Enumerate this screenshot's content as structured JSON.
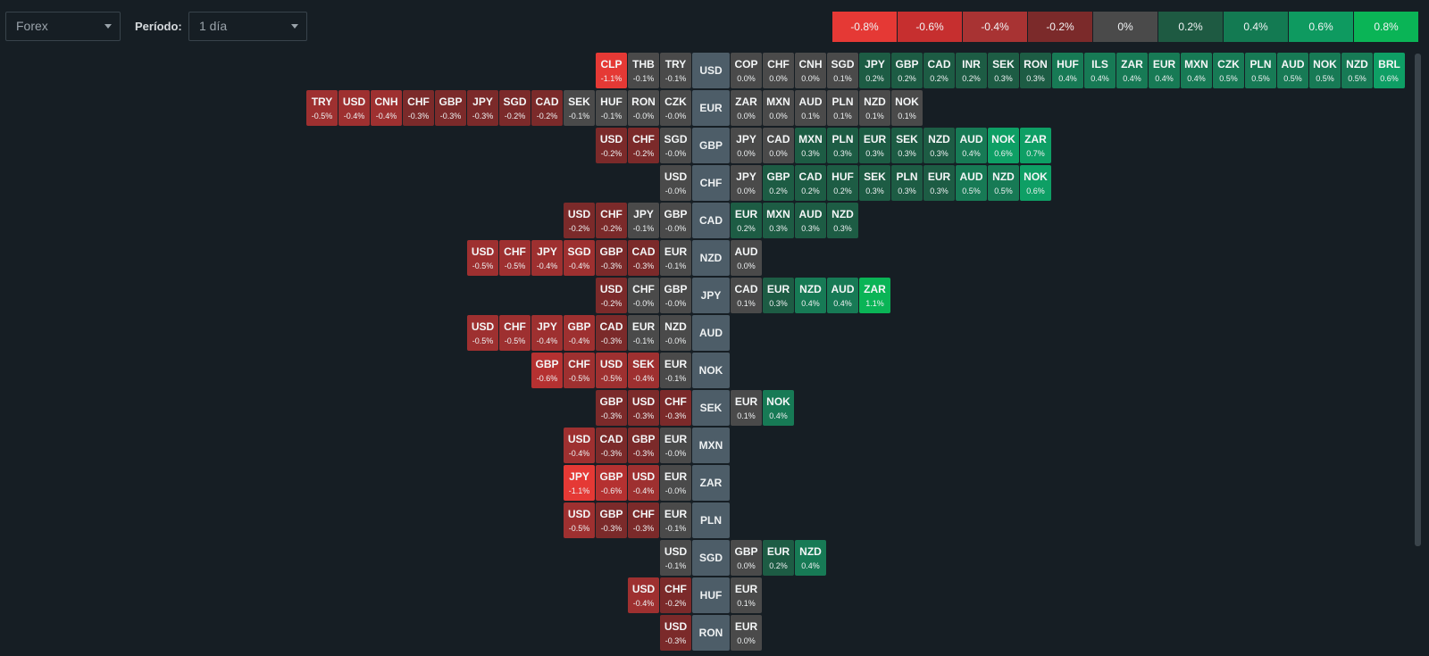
{
  "toolbar": {
    "market": "Forex",
    "period_label": "Período:",
    "period_value": "1 día"
  },
  "legend": [
    {
      "label": "-0.8%",
      "color": "#e53935"
    },
    {
      "label": "-0.6%",
      "color": "#c62f2f"
    },
    {
      "label": "-0.4%",
      "color": "#a83333"
    },
    {
      "label": "-0.2%",
      "color": "#7b2a2a"
    },
    {
      "label": "0%",
      "color": "#4a4a4a"
    },
    {
      "label": "0.2%",
      "color": "#1e5a42"
    },
    {
      "label": "0.4%",
      "color": "#137a52"
    },
    {
      "label": "0.6%",
      "color": "#0e9a60"
    },
    {
      "label": "0.8%",
      "color": "#0ab456"
    }
  ],
  "rows": [
    {
      "base": "USD",
      "left": [
        [
          "CLP",
          "-1.1%"
        ],
        [
          "THB",
          "-0.1%"
        ],
        [
          "TRY",
          "-0.1%"
        ]
      ],
      "right": [
        [
          "COP",
          "0.0%"
        ],
        [
          "CHF",
          "0.0%"
        ],
        [
          "CNH",
          "0.0%"
        ],
        [
          "SGD",
          "0.1%"
        ],
        [
          "JPY",
          "0.2%"
        ],
        [
          "GBP",
          "0.2%"
        ],
        [
          "CAD",
          "0.2%"
        ],
        [
          "INR",
          "0.2%"
        ],
        [
          "SEK",
          "0.3%"
        ],
        [
          "RON",
          "0.3%"
        ],
        [
          "HUF",
          "0.4%"
        ],
        [
          "ILS",
          "0.4%"
        ],
        [
          "ZAR",
          "0.4%"
        ],
        [
          "EUR",
          "0.4%"
        ],
        [
          "MXN",
          "0.4%"
        ],
        [
          "CZK",
          "0.5%"
        ],
        [
          "PLN",
          "0.5%"
        ],
        [
          "AUD",
          "0.5%"
        ],
        [
          "NOK",
          "0.5%"
        ],
        [
          "NZD",
          "0.5%"
        ],
        [
          "BRL",
          "0.6%"
        ]
      ]
    },
    {
      "base": "EUR",
      "left": [
        [
          "TRY",
          "-0.5%"
        ],
        [
          "USD",
          "-0.4%"
        ],
        [
          "CNH",
          "-0.4%"
        ],
        [
          "CHF",
          "-0.3%"
        ],
        [
          "GBP",
          "-0.3%"
        ],
        [
          "JPY",
          "-0.3%"
        ],
        [
          "SGD",
          "-0.2%"
        ],
        [
          "CAD",
          "-0.2%"
        ],
        [
          "SEK",
          "-0.1%"
        ],
        [
          "HUF",
          "-0.1%"
        ],
        [
          "RON",
          "-0.0%"
        ],
        [
          "CZK",
          "-0.0%"
        ]
      ],
      "right": [
        [
          "ZAR",
          "0.0%"
        ],
        [
          "MXN",
          "0.0%"
        ],
        [
          "AUD",
          "0.1%"
        ],
        [
          "PLN",
          "0.1%"
        ],
        [
          "NZD",
          "0.1%"
        ],
        [
          "NOK",
          "0.1%"
        ]
      ]
    },
    {
      "base": "GBP",
      "left": [
        [
          "USD",
          "-0.2%"
        ],
        [
          "CHF",
          "-0.2%"
        ],
        [
          "SGD",
          "-0.0%"
        ]
      ],
      "right": [
        [
          "JPY",
          "0.0%"
        ],
        [
          "CAD",
          "0.0%"
        ],
        [
          "MXN",
          "0.3%"
        ],
        [
          "PLN",
          "0.3%"
        ],
        [
          "EUR",
          "0.3%"
        ],
        [
          "SEK",
          "0.3%"
        ],
        [
          "NZD",
          "0.3%"
        ],
        [
          "AUD",
          "0.4%"
        ],
        [
          "NOK",
          "0.6%"
        ],
        [
          "ZAR",
          "0.7%"
        ]
      ]
    },
    {
      "base": "CHF",
      "left": [
        [
          "USD",
          "-0.0%"
        ]
      ],
      "right": [
        [
          "JPY",
          "0.0%"
        ],
        [
          "GBP",
          "0.2%"
        ],
        [
          "CAD",
          "0.2%"
        ],
        [
          "HUF",
          "0.2%"
        ],
        [
          "SEK",
          "0.3%"
        ],
        [
          "PLN",
          "0.3%"
        ],
        [
          "EUR",
          "0.3%"
        ],
        [
          "AUD",
          "0.5%"
        ],
        [
          "NZD",
          "0.5%"
        ],
        [
          "NOK",
          "0.6%"
        ]
      ]
    },
    {
      "base": "CAD",
      "left": [
        [
          "USD",
          "-0.2%"
        ],
        [
          "CHF",
          "-0.2%"
        ],
        [
          "JPY",
          "-0.1%"
        ],
        [
          "GBP",
          "-0.0%"
        ]
      ],
      "right": [
        [
          "EUR",
          "0.2%"
        ],
        [
          "MXN",
          "0.3%"
        ],
        [
          "AUD",
          "0.3%"
        ],
        [
          "NZD",
          "0.3%"
        ]
      ]
    },
    {
      "base": "NZD",
      "left": [
        [
          "USD",
          "-0.5%"
        ],
        [
          "CHF",
          "-0.5%"
        ],
        [
          "JPY",
          "-0.4%"
        ],
        [
          "SGD",
          "-0.4%"
        ],
        [
          "GBP",
          "-0.3%"
        ],
        [
          "CAD",
          "-0.3%"
        ],
        [
          "EUR",
          "-0.1%"
        ]
      ],
      "right": [
        [
          "AUD",
          "0.0%"
        ]
      ]
    },
    {
      "base": "JPY",
      "left": [
        [
          "USD",
          "-0.2%"
        ],
        [
          "CHF",
          "-0.0%"
        ],
        [
          "GBP",
          "-0.0%"
        ]
      ],
      "right": [
        [
          "CAD",
          "0.1%"
        ],
        [
          "EUR",
          "0.3%"
        ],
        [
          "NZD",
          "0.4%"
        ],
        [
          "AUD",
          "0.4%"
        ],
        [
          "ZAR",
          "1.1%"
        ]
      ]
    },
    {
      "base": "AUD",
      "left": [
        [
          "USD",
          "-0.5%"
        ],
        [
          "CHF",
          "-0.5%"
        ],
        [
          "JPY",
          "-0.4%"
        ],
        [
          "GBP",
          "-0.4%"
        ],
        [
          "CAD",
          "-0.3%"
        ],
        [
          "EUR",
          "-0.1%"
        ],
        [
          "NZD",
          "-0.0%"
        ]
      ],
      "right": []
    },
    {
      "base": "NOK",
      "left": [
        [
          "GBP",
          "-0.6%"
        ],
        [
          "CHF",
          "-0.5%"
        ],
        [
          "USD",
          "-0.5%"
        ],
        [
          "SEK",
          "-0.4%"
        ],
        [
          "EUR",
          "-0.1%"
        ]
      ],
      "right": []
    },
    {
      "base": "SEK",
      "left": [
        [
          "GBP",
          "-0.3%"
        ],
        [
          "USD",
          "-0.3%"
        ],
        [
          "CHF",
          "-0.3%"
        ]
      ],
      "right": [
        [
          "EUR",
          "0.1%"
        ],
        [
          "NOK",
          "0.4%"
        ]
      ]
    },
    {
      "base": "MXN",
      "left": [
        [
          "USD",
          "-0.4%"
        ],
        [
          "CAD",
          "-0.3%"
        ],
        [
          "GBP",
          "-0.3%"
        ],
        [
          "EUR",
          "-0.0%"
        ]
      ],
      "right": []
    },
    {
      "base": "ZAR",
      "left": [
        [
          "JPY",
          "-1.1%"
        ],
        [
          "GBP",
          "-0.6%"
        ],
        [
          "USD",
          "-0.4%"
        ],
        [
          "EUR",
          "-0.0%"
        ]
      ],
      "right": []
    },
    {
      "base": "PLN",
      "left": [
        [
          "USD",
          "-0.5%"
        ],
        [
          "GBP",
          "-0.3%"
        ],
        [
          "CHF",
          "-0.3%"
        ],
        [
          "EUR",
          "-0.1%"
        ]
      ],
      "right": []
    },
    {
      "base": "SGD",
      "left": [
        [
          "USD",
          "-0.1%"
        ]
      ],
      "right": [
        [
          "GBP",
          "0.0%"
        ],
        [
          "EUR",
          "0.2%"
        ],
        [
          "NZD",
          "0.4%"
        ]
      ]
    },
    {
      "base": "HUF",
      "left": [
        [
          "USD",
          "-0.4%"
        ],
        [
          "CHF",
          "-0.2%"
        ]
      ],
      "right": [
        [
          "EUR",
          "0.1%"
        ]
      ]
    },
    {
      "base": "RON",
      "left": [
        [
          "USD",
          "-0.3%"
        ]
      ],
      "right": [
        [
          "EUR",
          "0.0%"
        ]
      ]
    }
  ]
}
